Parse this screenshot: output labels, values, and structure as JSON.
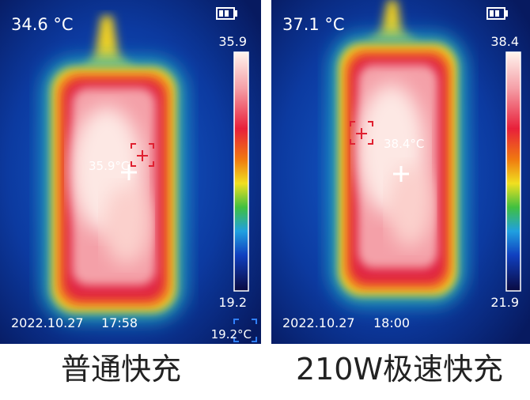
{
  "panels": [
    {
      "temperature": "34.6 °C",
      "scale_max": "35.9",
      "scale_min": "19.2",
      "spot": "35.9°C",
      "date": "2022.10.27",
      "time": "17:58",
      "corner": "19.2°C",
      "caption": "普通快充"
    },
    {
      "temperature": "37.1 °C",
      "scale_max": "38.4",
      "scale_min": "21.9",
      "spot": "38.4°C",
      "date": "2022.10.27",
      "time": "18:00",
      "caption": "210W极速快充"
    }
  ]
}
